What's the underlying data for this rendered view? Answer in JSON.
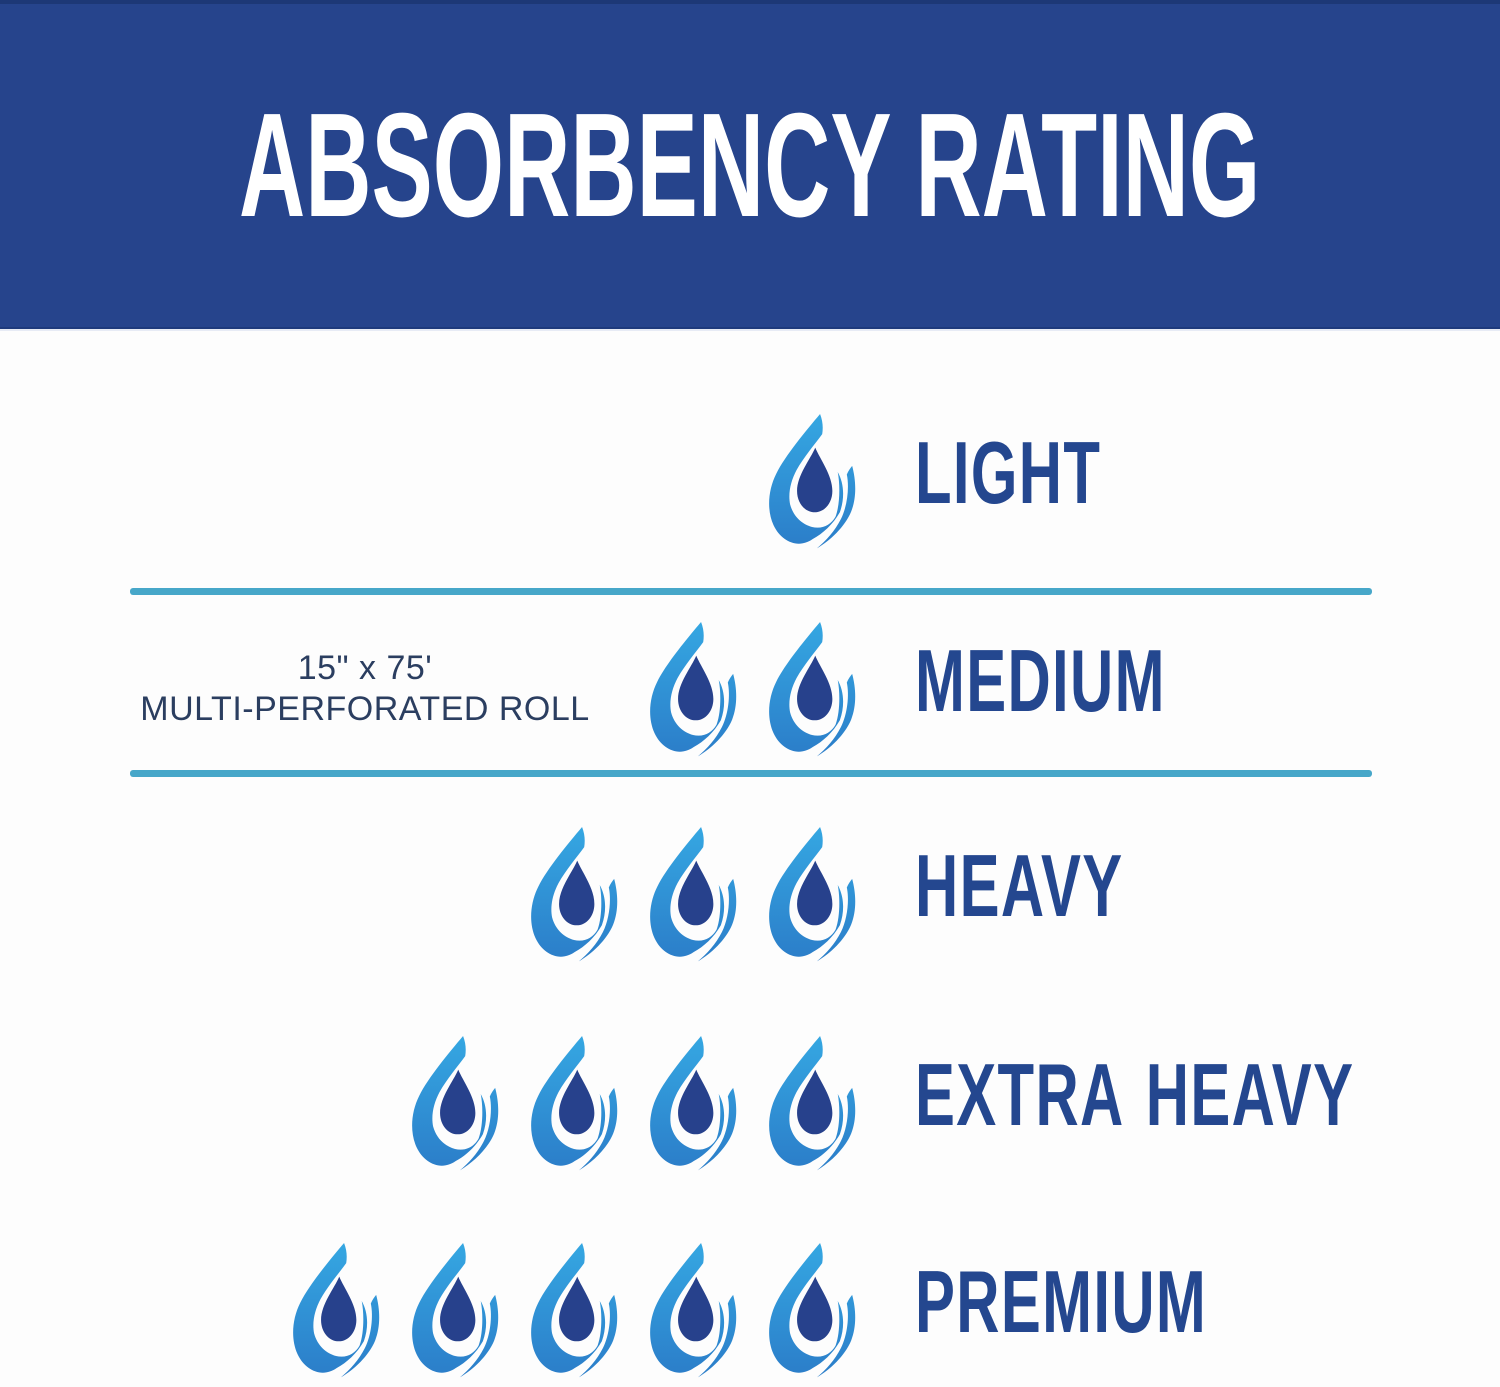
{
  "header": {
    "title": "ABSORBENCY RATING"
  },
  "note": {
    "line1": "15\" x 75'",
    "line2": "MULTI-PERFORATED ROLL"
  },
  "ratings": [
    {
      "label": "LIGHT",
      "drops": 1
    },
    {
      "label": "MEDIUM",
      "drops": 2
    },
    {
      "label": "HEAVY",
      "drops": 3
    },
    {
      "label": "EXTRA HEAVY",
      "drops": 4
    },
    {
      "label": "PREMIUM",
      "drops": 5
    }
  ],
  "icons": {
    "drop": "water-drop-icon"
  },
  "colors": {
    "banner_bg": "#26448C",
    "banner_text": "#FFFFFF",
    "label_text": "#24478F",
    "note_text": "#2B3E60",
    "separator": "#47A7C9",
    "drop_gradient_top": "#35A7E2",
    "drop_gradient_bottom": "#2B7CC8",
    "drop_inner": "#27418C",
    "background": "#FDFDFD"
  }
}
